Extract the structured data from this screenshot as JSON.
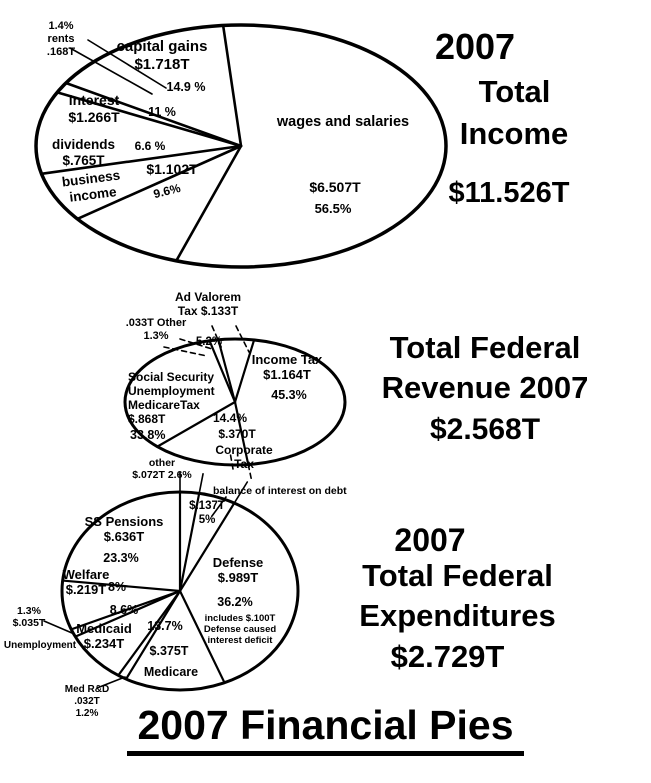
{
  "figure": {
    "footer_title": "2007 Financial Pies"
  },
  "income": {
    "heading": [
      "2007",
      "Total",
      "Income",
      "$11.526T"
    ],
    "labels": {
      "rents": "1.4%\nrents\n.168T",
      "capital_gains": "capital gains\n$1.718T",
      "capital_gains_pct": "14.9 %",
      "interest": "interest\n$1.266T",
      "interest_pct": "11 %",
      "dividends": "dividends\n$.765T",
      "dividends_pct": "6.6 %",
      "business": "business\nincome",
      "business_value": "$1.102T",
      "business_pct": "9.6%",
      "wages": "wages and salaries",
      "wages_value": "$6.507T",
      "wages_pct": "56.5%"
    }
  },
  "revenue": {
    "heading": [
      "Total Federal",
      "Revenue 2007",
      "$2.568T"
    ],
    "labels": {
      "ad_valorem": "Ad Valorem\nTax $.133T",
      "other": ".033T Other\n1.3%",
      "ad_valorem_pct": "5.2%",
      "income_tax": "Income Tax\n$1.164T",
      "income_tax_pct": "45.3%",
      "ss_tax": "Social Security\nUnemployment\nMedicareTax\n$.868T",
      "ss_tax_pct": "33.8%",
      "corporate_pct": "14.4%",
      "corporate_value": "$.370T",
      "corporate": "Corporate\nTax"
    }
  },
  "expenditures": {
    "heading": [
      "2007",
      "Total Federal",
      "Expenditures",
      "$2.729T"
    ],
    "labels": {
      "other": "other\n$.072T 2.6%",
      "balance": "balance of interest on  debt",
      "balance_value": "$.137T\n5%",
      "ss_pensions": "SS Pensions\n$.636T",
      "ss_pensions_pct": "23.3%",
      "welfare": "Welfare\n$.219T",
      "welfare_pct": "8%",
      "unemployment_value": "1.3%\n$.035T",
      "unemployment": "Unemployment",
      "medicaid": "Medicaid\n$.234T",
      "medicaid_pct": "8.6%",
      "medicare_pct": "13.7%",
      "medicare_value": "$.375T",
      "medicare": "Medicare",
      "defense": "Defense\n$.989T",
      "defense_pct": "36.2%",
      "defense_note": "includes $.100T\nDefense caused\ninterest deficit",
      "med_rd": "Med R&D\n.032T\n1.2%"
    }
  },
  "chart_data": [
    {
      "type": "pie",
      "title": "2007 Total Income",
      "total": "$11.526T",
      "start_angle": 95,
      "direction": "ccw",
      "slices": [
        {
          "label": "capital gains",
          "amount": "$1.718T",
          "pct": 14.9
        },
        {
          "label": "rents",
          "amount": "$.168T",
          "pct": 1.4
        },
        {
          "label": "interest",
          "amount": "$1.266T",
          "pct": 11.0
        },
        {
          "label": "dividends",
          "amount": "$.765T",
          "pct": 6.6
        },
        {
          "label": "business income",
          "amount": "$1.102T",
          "pct": 9.6
        },
        {
          "label": "wages and salaries",
          "amount": "$6.507T",
          "pct": 56.5
        }
      ]
    },
    {
      "type": "pie",
      "title": "Total Federal Revenue 2007",
      "total": "$2.568T",
      "start_angle": 80,
      "direction": "ccw",
      "slices": [
        {
          "label": "Ad Valorem Tax",
          "amount": "$.133T",
          "pct": 5.2
        },
        {
          "label": "Other",
          "amount": "$.033T",
          "pct": 1.3
        },
        {
          "label": "Social Security Unemployment Medicare Tax",
          "amount": "$.868T",
          "pct": 33.8
        },
        {
          "label": "Corporate Tax",
          "amount": "$.370T",
          "pct": 14.4
        },
        {
          "label": "Income Tax",
          "amount": "$1.164T",
          "pct": 45.3
        }
      ]
    },
    {
      "type": "pie",
      "title": "2007 Total Federal Expenditures",
      "total": "$2.729T",
      "start_angle": 90,
      "direction": "cw",
      "slices": [
        {
          "label": "other",
          "amount": "$.072T",
          "pct": 2.6
        },
        {
          "label": "balance of interest on debt",
          "amount": "$.137T",
          "pct": 5.0
        },
        {
          "label": "Defense",
          "amount": "$.989T",
          "pct": 36.2,
          "note": "includes $.100T Defense caused interest deficit"
        },
        {
          "label": "Medicare",
          "amount": "$.375T",
          "pct": 13.7
        },
        {
          "label": "Med R&D",
          "amount": "$.032T",
          "pct": 1.2
        },
        {
          "label": "Medicaid",
          "amount": "$.234T",
          "pct": 8.6
        },
        {
          "label": "Unemployment",
          "amount": "$.035T",
          "pct": 1.3
        },
        {
          "label": "Welfare",
          "amount": "$.219T",
          "pct": 8.0
        },
        {
          "label": "SS Pensions",
          "amount": "$.636T",
          "pct": 23.3
        }
      ]
    }
  ]
}
